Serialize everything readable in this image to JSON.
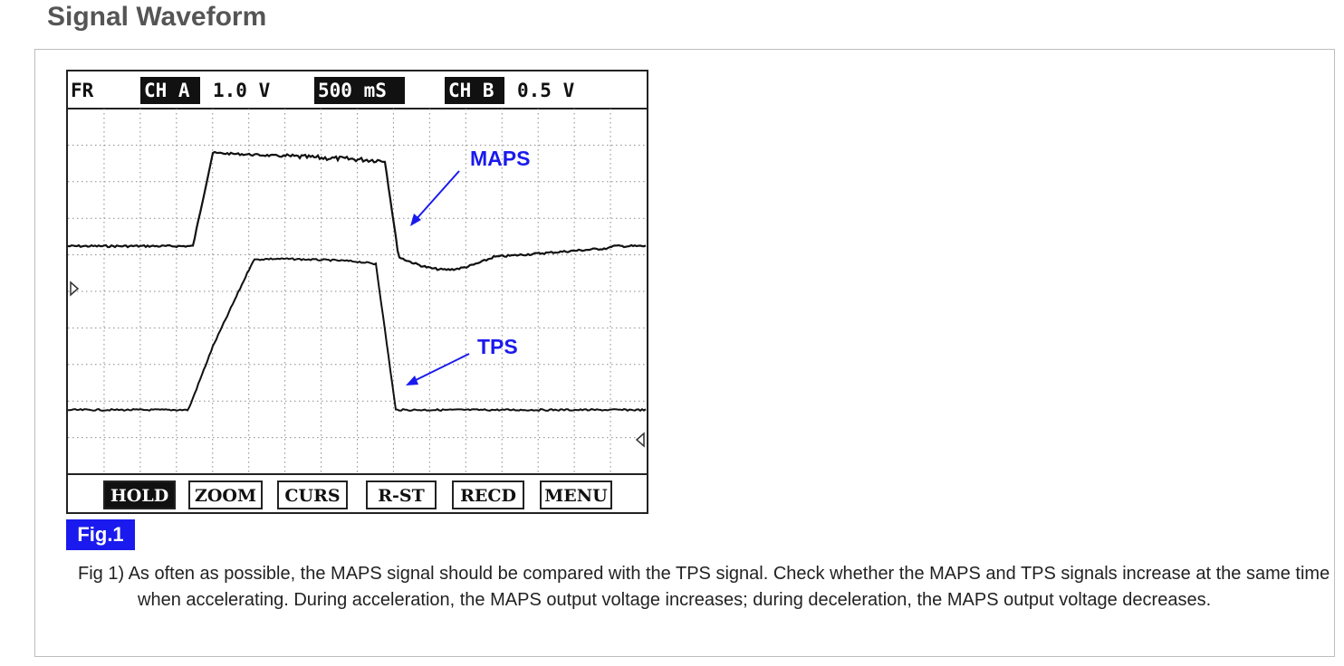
{
  "page": {
    "section_title": "Signal Waveform"
  },
  "scope": {
    "header": {
      "mode": "FR",
      "ch_a_label": "CH A",
      "ch_a_scale": "1.0 V",
      "timebase": "500 mS",
      "ch_b_label": "CH B",
      "ch_b_scale": "0.5 V"
    },
    "signal_labels": {
      "maps": "MAPS",
      "tps": "TPS"
    },
    "buttons": [
      "HOLD",
      "ZOOM",
      "CURS",
      "R-ST",
      "RECD",
      "MENU"
    ],
    "active_button": "HOLD"
  },
  "figure": {
    "badge": "Fig.1",
    "caption": "Fig 1) As often as possible, the MAPS signal should be compared with the TPS signal. Check whether the MAPS and TPS signals increase at the same time when accelerating. During acceleration, the MAPS output voltage increases; during deceleration, the MAPS output voltage decreases."
  },
  "colors": {
    "label_blue": "#1a1aee",
    "trace": "#111111",
    "grid": "#8a8a8a"
  }
}
